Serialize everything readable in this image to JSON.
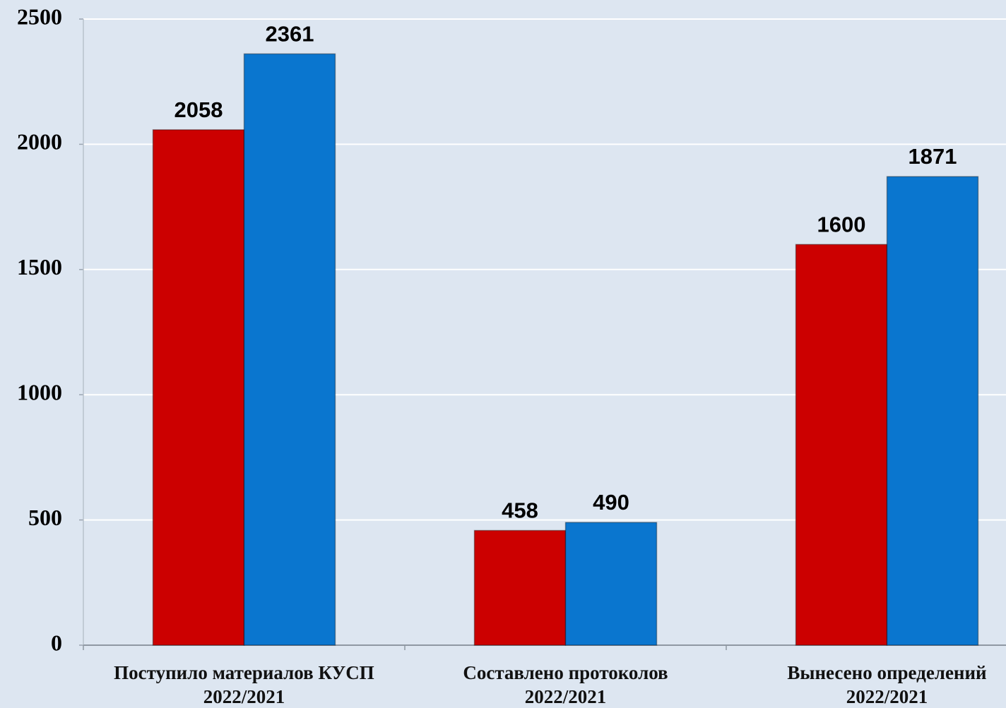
{
  "chart_data": {
    "type": "grouped-bar",
    "categories": [
      [
        "Поступило материалов КУСП",
        "2022/2021"
      ],
      [
        "Составлено протоколов",
        "2022/2021"
      ],
      [
        "Вынесено определений",
        "2022/2021"
      ]
    ],
    "series": [
      {
        "color": "#cc0000",
        "values": [
          2058,
          458,
          1600
        ]
      },
      {
        "color": "#0a76cf",
        "values": [
          2361,
          490,
          1871
        ]
      }
    ],
    "ylim": [
      0,
      2500
    ],
    "yticks": [
      0,
      500,
      1000,
      1500,
      2000,
      2500
    ],
    "grid": true
  }
}
